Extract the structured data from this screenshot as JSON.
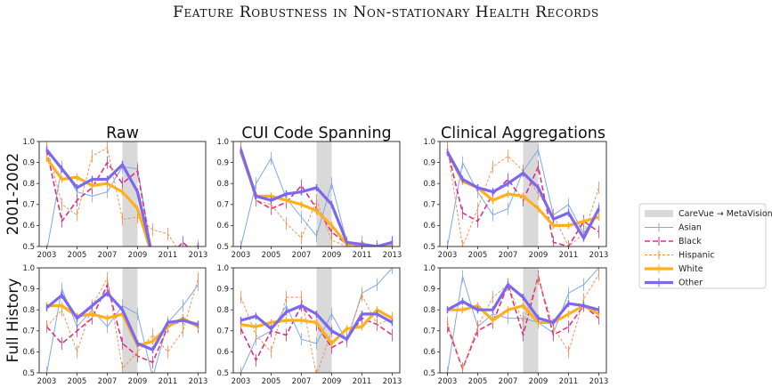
{
  "figure_title": "Feature Robustness in Non-stationary Health Records",
  "columns": [
    "Raw",
    "CUI Code Spanning",
    "Clinical Aggregations"
  ],
  "rows": [
    "2001-2002",
    "Full History"
  ],
  "legend": {
    "shading": "CareVue → MetaVision",
    "series": [
      "Asian",
      "Black",
      "Hispanic",
      "White",
      "Other"
    ]
  },
  "colors": {
    "Asian": "#7fa8e8",
    "Black": "#d6338a",
    "Hispanic": "#f5894a",
    "White": "#ffb020",
    "Other": "#7b68ee",
    "shade": "#d9d9d9"
  },
  "axes": {
    "xlim": [
      2002.5,
      2013.5
    ],
    "xticks": [
      2003,
      2005,
      2007,
      2009,
      2011,
      2013
    ],
    "ylim": [
      0.5,
      1.0
    ],
    "yticks": [
      0.5,
      0.6,
      0.7,
      0.8,
      0.9,
      1.0
    ],
    "shade_range": [
      2008,
      2009
    ],
    "grid": false
  },
  "chart_data": [
    {
      "type": "line",
      "title": "Raw",
      "ylabel": "2001-2002",
      "x": [
        2002,
        2003,
        2004,
        2005,
        2006,
        2007,
        2008,
        2009,
        2010,
        2011,
        2012,
        2013
      ],
      "series": [
        {
          "name": "Asian",
          "values": [
            null,
            0.48,
            0.88,
            0.76,
            0.74,
            0.76,
            0.88,
            0.87,
            0.45,
            0.44,
            0.45,
            0.5
          ]
        },
        {
          "name": "Black",
          "values": [
            null,
            0.96,
            0.62,
            0.72,
            0.78,
            0.9,
            0.8,
            0.86,
            0.44,
            0.45,
            0.52,
            0.45
          ]
        },
        {
          "name": "Hispanic",
          "values": [
            null,
            0.98,
            0.7,
            0.65,
            0.93,
            0.97,
            0.63,
            0.64,
            0.58,
            0.56,
            0.45,
            0.45
          ]
        },
        {
          "name": "White",
          "values": [
            null,
            0.92,
            0.82,
            0.83,
            0.79,
            0.8,
            0.76,
            0.68,
            0.45,
            0.44,
            0.45,
            0.45
          ]
        },
        {
          "name": "Other",
          "values": [
            null,
            0.96,
            0.87,
            0.78,
            0.82,
            0.82,
            0.89,
            0.76,
            0.45,
            0.44,
            0.45,
            0.5
          ]
        }
      ]
    },
    {
      "type": "line",
      "title": "CUI Code Spanning",
      "ylabel": "2001-2002",
      "x": [
        2002,
        2003,
        2004,
        2005,
        2006,
        2007,
        2008,
        2009,
        2010,
        2011,
        2012,
        2013
      ],
      "series": [
        {
          "name": "Asian",
          "values": [
            null,
            0.5,
            0.8,
            0.92,
            0.73,
            0.64,
            0.55,
            0.8,
            0.52,
            0.5,
            0.5,
            0.52
          ]
        },
        {
          "name": "Black",
          "values": [
            null,
            0.97,
            0.72,
            0.68,
            0.71,
            0.79,
            0.68,
            0.57,
            0.51,
            0.5,
            0.5,
            0.52
          ]
        },
        {
          "name": "Hispanic",
          "values": [
            null,
            0.97,
            0.72,
            0.7,
            0.61,
            0.54,
            0.72,
            0.53,
            0.5,
            0.52,
            0.5,
            0.5
          ]
        },
        {
          "name": "White",
          "values": [
            null,
            0.95,
            0.74,
            0.74,
            0.72,
            0.7,
            0.67,
            0.6,
            0.51,
            0.51,
            0.5,
            0.51
          ]
        },
        {
          "name": "Other",
          "values": [
            null,
            0.96,
            0.74,
            0.72,
            0.75,
            0.76,
            0.78,
            0.7,
            0.52,
            0.51,
            0.5,
            0.52
          ]
        }
      ]
    },
    {
      "type": "line",
      "title": "Clinical Aggregations",
      "ylabel": "2001-2002",
      "x": [
        2002,
        2003,
        2004,
        2005,
        2006,
        2007,
        2008,
        2009,
        2010,
        2011,
        2012,
        2013
      ],
      "series": [
        {
          "name": "Asian",
          "values": [
            null,
            0.5,
            0.9,
            0.76,
            0.65,
            0.68,
            0.86,
            0.96,
            0.65,
            0.7,
            0.56,
            0.68
          ]
        },
        {
          "name": "Black",
          "values": [
            null,
            0.96,
            0.66,
            0.62,
            0.75,
            0.82,
            0.72,
            0.88,
            0.52,
            0.5,
            0.62,
            0.57
          ]
        },
        {
          "name": "Hispanic",
          "values": [
            null,
            0.97,
            0.5,
            0.68,
            0.88,
            0.93,
            0.86,
            0.75,
            0.65,
            0.5,
            0.56,
            0.78
          ]
        },
        {
          "name": "White",
          "values": [
            null,
            0.95,
            0.81,
            0.78,
            0.72,
            0.75,
            0.74,
            0.68,
            0.6,
            0.6,
            0.62,
            0.64
          ]
        },
        {
          "name": "Other",
          "values": [
            null,
            0.95,
            0.82,
            0.78,
            0.76,
            0.8,
            0.85,
            0.78,
            0.63,
            0.66,
            0.54,
            0.68
          ]
        }
      ]
    },
    {
      "type": "line",
      "title": "",
      "ylabel": "Full History",
      "x": [
        2002,
        2003,
        2004,
        2005,
        2006,
        2007,
        2008,
        2009,
        2010,
        2011,
        2012,
        2013
      ],
      "series": [
        {
          "name": "Asian",
          "values": [
            null,
            0.5,
            0.9,
            0.72,
            0.8,
            0.72,
            0.82,
            0.78,
            0.48,
            0.74,
            0.82,
            0.92
          ]
        },
        {
          "name": "Black",
          "values": [
            null,
            0.72,
            0.64,
            0.7,
            0.76,
            0.92,
            0.64,
            0.58,
            0.55,
            0.72,
            0.75,
            0.72
          ]
        },
        {
          "name": "Hispanic",
          "values": [
            null,
            0.72,
            0.8,
            0.6,
            0.82,
            0.95,
            0.52,
            0.6,
            0.68,
            0.6,
            0.7,
            0.95
          ]
        },
        {
          "name": "White",
          "values": [
            null,
            0.82,
            0.82,
            0.77,
            0.78,
            0.76,
            0.78,
            0.63,
            0.65,
            0.72,
            0.76,
            0.72
          ]
        },
        {
          "name": "Other",
          "values": [
            null,
            0.81,
            0.87,
            0.76,
            0.82,
            0.88,
            0.8,
            0.64,
            0.61,
            0.74,
            0.75,
            0.73
          ]
        }
      ]
    },
    {
      "type": "line",
      "title": "",
      "ylabel": "Full History",
      "x": [
        2002,
        2003,
        2004,
        2005,
        2006,
        2007,
        2008,
        2009,
        2010,
        2011,
        2012,
        2013
      ],
      "series": [
        {
          "name": "Asian",
          "values": [
            null,
            0.5,
            0.66,
            0.7,
            0.82,
            0.66,
            0.64,
            0.78,
            0.65,
            0.88,
            0.92,
            1.0
          ]
        },
        {
          "name": "Black",
          "values": [
            null,
            0.71,
            0.56,
            0.7,
            0.68,
            0.82,
            0.73,
            0.62,
            0.66,
            0.76,
            0.73,
            0.68
          ]
        },
        {
          "name": "Hispanic",
          "values": [
            null,
            0.86,
            0.68,
            0.6,
            0.86,
            0.86,
            0.49,
            0.7,
            0.66,
            0.87,
            0.73,
            0.76
          ]
        },
        {
          "name": "White",
          "values": [
            null,
            0.73,
            0.72,
            0.74,
            0.75,
            0.75,
            0.74,
            0.64,
            0.71,
            0.72,
            0.8,
            0.76
          ]
        },
        {
          "name": "Other",
          "values": [
            null,
            0.75,
            0.77,
            0.71,
            0.79,
            0.82,
            0.78,
            0.7,
            0.66,
            0.78,
            0.78,
            0.74
          ]
        }
      ]
    },
    {
      "type": "line",
      "title": "",
      "ylabel": "Full History",
      "x": [
        2002,
        2003,
        2004,
        2005,
        2006,
        2007,
        2008,
        2009,
        2010,
        2011,
        2012,
        2013
      ],
      "series": [
        {
          "name": "Asian",
          "values": [
            null,
            0.5,
            0.96,
            0.72,
            0.78,
            0.76,
            0.76,
            0.74,
            0.69,
            0.88,
            0.92,
            1.0
          ]
        },
        {
          "name": "Black",
          "values": [
            null,
            0.72,
            0.52,
            0.7,
            0.74,
            0.92,
            0.68,
            0.96,
            0.68,
            0.72,
            0.82,
            0.76
          ]
        },
        {
          "name": "Hispanic",
          "values": [
            null,
            0.74,
            0.52,
            0.72,
            0.86,
            0.92,
            0.74,
            0.95,
            0.72,
            0.6,
            0.85,
            0.97
          ]
        },
        {
          "name": "White",
          "values": [
            null,
            0.8,
            0.8,
            0.82,
            0.75,
            0.8,
            0.82,
            0.74,
            0.74,
            0.78,
            0.82,
            0.78
          ]
        },
        {
          "name": "Other",
          "values": [
            null,
            0.8,
            0.84,
            0.8,
            0.8,
            0.92,
            0.86,
            0.76,
            0.74,
            0.83,
            0.82,
            0.8
          ]
        }
      ]
    }
  ]
}
